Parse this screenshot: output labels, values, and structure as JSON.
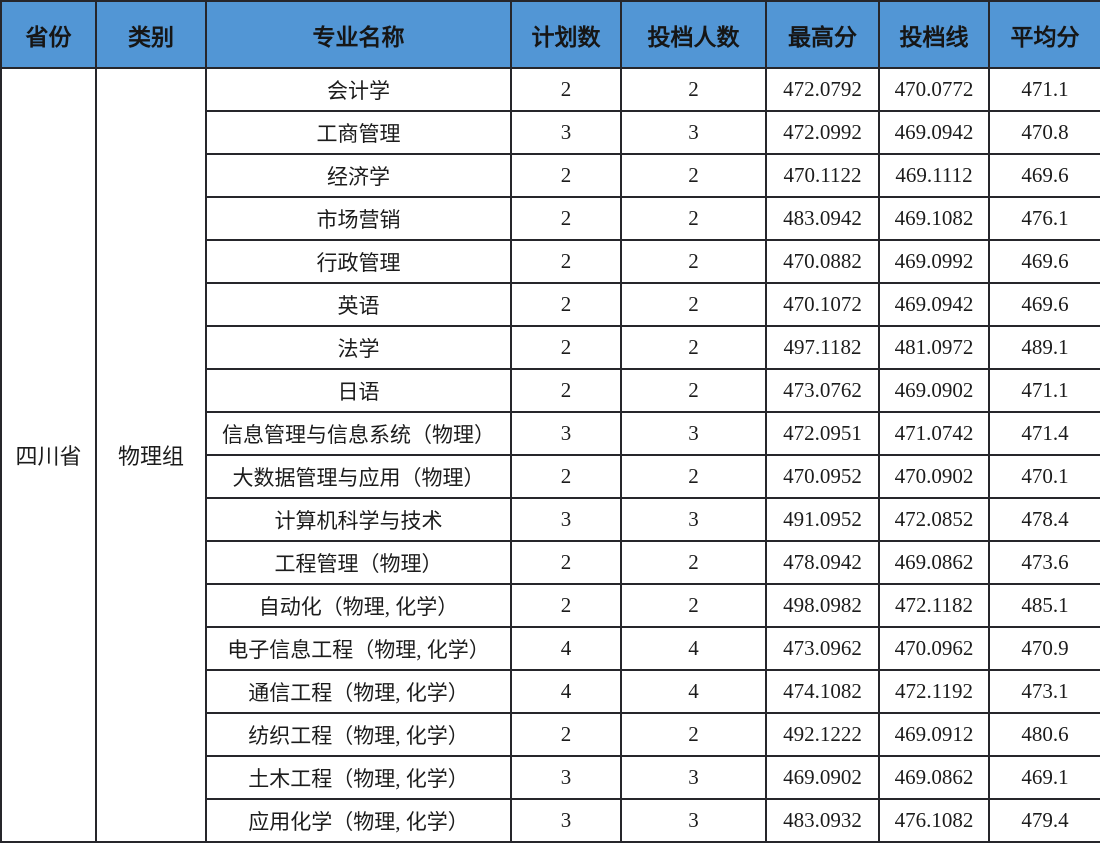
{
  "colors": {
    "header_bg": "#5296d5",
    "border": "#26262b",
    "text": "#1c1c1c",
    "row_bg": "#ffffff"
  },
  "table": {
    "headers": {
      "province": "省份",
      "category": "类别",
      "major": "专业名称",
      "plan": "计划数",
      "applicants": "投档人数",
      "max_score": "最高分",
      "admission_line": "投档线",
      "avg_score": "平均分"
    },
    "province": "四川省",
    "category": "物理组",
    "rows": [
      {
        "major": "会计学",
        "plan": "2",
        "applicants": "2",
        "max": "472.0792",
        "line": "470.0772",
        "avg": "471.1"
      },
      {
        "major": "工商管理",
        "plan": "3",
        "applicants": "3",
        "max": "472.0992",
        "line": "469.0942",
        "avg": "470.8"
      },
      {
        "major": "经济学",
        "plan": "2",
        "applicants": "2",
        "max": "470.1122",
        "line": "469.1112",
        "avg": "469.6"
      },
      {
        "major": "市场营销",
        "plan": "2",
        "applicants": "2",
        "max": "483.0942",
        "line": "469.1082",
        "avg": "476.1"
      },
      {
        "major": "行政管理",
        "plan": "2",
        "applicants": "2",
        "max": "470.0882",
        "line": "469.0992",
        "avg": "469.6"
      },
      {
        "major": "英语",
        "plan": "2",
        "applicants": "2",
        "max": "470.1072",
        "line": "469.0942",
        "avg": "469.6"
      },
      {
        "major": "法学",
        "plan": "2",
        "applicants": "2",
        "max": "497.1182",
        "line": "481.0972",
        "avg": "489.1"
      },
      {
        "major": "日语",
        "plan": "2",
        "applicants": "2",
        "max": "473.0762",
        "line": "469.0902",
        "avg": "471.1"
      },
      {
        "major": "信息管理与信息系统（物理）",
        "plan": "3",
        "applicants": "3",
        "max": "472.0951",
        "line": "471.0742",
        "avg": "471.4"
      },
      {
        "major": "大数据管理与应用（物理）",
        "plan": "2",
        "applicants": "2",
        "max": "470.0952",
        "line": "470.0902",
        "avg": "470.1"
      },
      {
        "major": "计算机科学与技术",
        "plan": "3",
        "applicants": "3",
        "max": "491.0952",
        "line": "472.0852",
        "avg": "478.4"
      },
      {
        "major": "工程管理（物理）",
        "plan": "2",
        "applicants": "2",
        "max": "478.0942",
        "line": "469.0862",
        "avg": "473.6"
      },
      {
        "major": "自动化（物理, 化学）",
        "plan": "2",
        "applicants": "2",
        "max": "498.0982",
        "line": "472.1182",
        "avg": "485.1"
      },
      {
        "major": "电子信息工程（物理, 化学）",
        "plan": "4",
        "applicants": "4",
        "max": "473.0962",
        "line": "470.0962",
        "avg": "470.9"
      },
      {
        "major": "通信工程（物理, 化学）",
        "plan": "4",
        "applicants": "4",
        "max": "474.1082",
        "line": "472.1192",
        "avg": "473.1"
      },
      {
        "major": "纺织工程（物理, 化学）",
        "plan": "2",
        "applicants": "2",
        "max": "492.1222",
        "line": "469.0912",
        "avg": "480.6"
      },
      {
        "major": "土木工程（物理, 化学）",
        "plan": "3",
        "applicants": "3",
        "max": "469.0902",
        "line": "469.0862",
        "avg": "469.1"
      },
      {
        "major": "应用化学（物理, 化学）",
        "plan": "3",
        "applicants": "3",
        "max": "483.0932",
        "line": "476.1082",
        "avg": "479.4"
      }
    ]
  }
}
